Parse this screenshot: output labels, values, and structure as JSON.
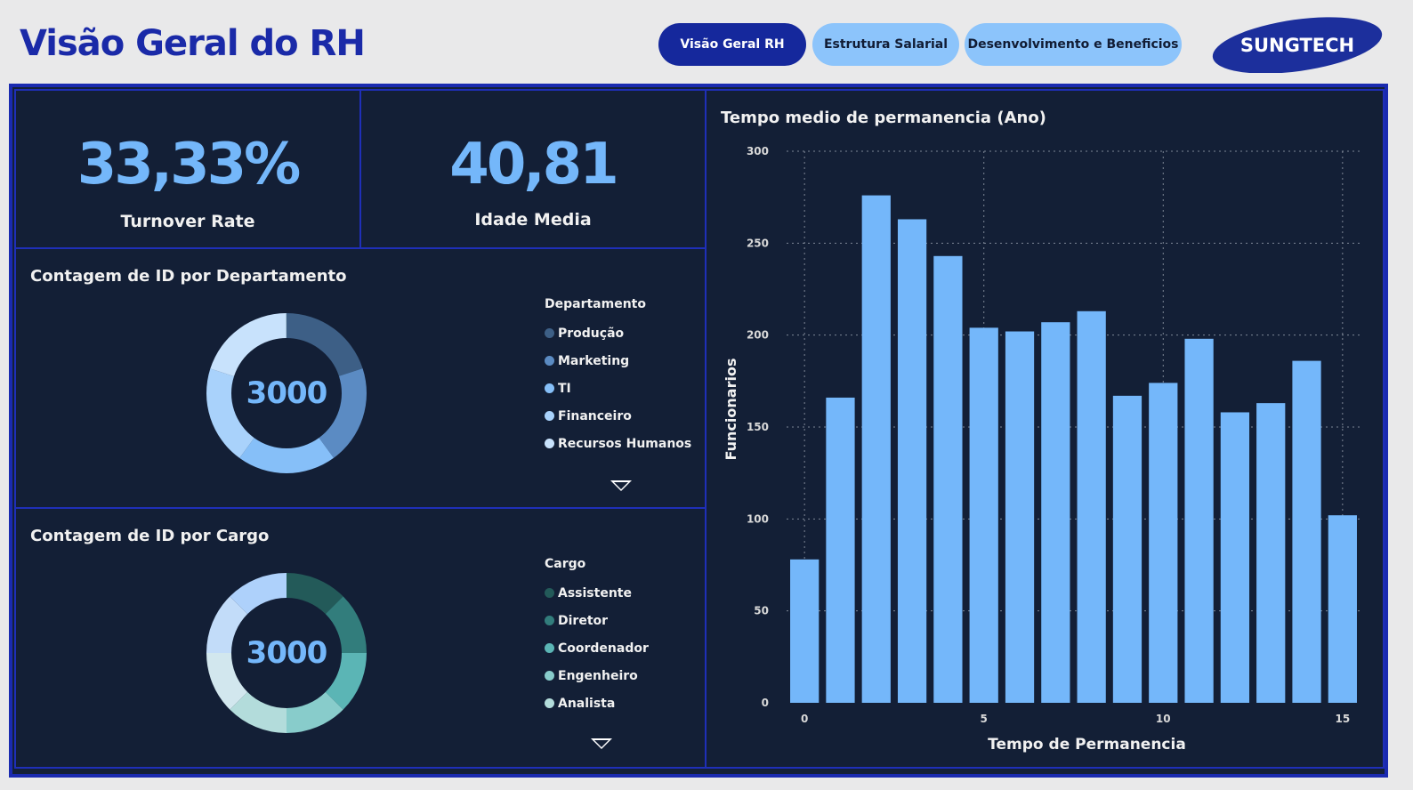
{
  "header": {
    "title": "Visão Geral do RH",
    "nav": [
      {
        "label": "Visão Geral RH",
        "active": true
      },
      {
        "label": "Estrutura Salarial",
        "active": false
      },
      {
        "label": "Desenvolvimento e Beneficios",
        "active": false
      }
    ],
    "logo_text": "SUNGTECH"
  },
  "kpis": {
    "turnover": {
      "value": "33,33%",
      "label": "Turnover Rate"
    },
    "age": {
      "value": "40,81",
      "label": "Idade Media"
    }
  },
  "colors": {
    "accent": "#74b7fa",
    "frame_border": "#1a2ab0",
    "background": "#131f36",
    "title_blue": "#1a2aa8"
  },
  "chart_data": [
    {
      "type": "pie",
      "variant": "donut",
      "title": "Contagem de ID por Departamento",
      "center_value": "3000",
      "legend_title": "Departamento",
      "categories": [
        "Produção",
        "Marketing",
        "TI",
        "Financeiro",
        "Recursos Humanos"
      ],
      "values": [
        600,
        600,
        600,
        600,
        600
      ],
      "colors": [
        "#3d5f86",
        "#5b8bc3",
        "#86bff8",
        "#a9d2fb",
        "#c8e2fc",
        "#d7e8ee",
        "#a8d6d6",
        "#8bc5cb"
      ],
      "extra_segments": [
        0.5,
        0.5,
        0.5
      ],
      "legend_more": true
    },
    {
      "type": "pie",
      "variant": "donut",
      "title": "Contagem de ID por Cargo",
      "center_value": "3000",
      "legend_title": "Cargo",
      "categories": [
        "Assistente",
        "Diretor",
        "Coordenador",
        "Engenheiro",
        "Analista"
      ],
      "values": [
        375,
        375,
        375,
        375,
        375
      ],
      "colors": [
        "#235a59",
        "#327d7c",
        "#5bb5b5",
        "#88cccb",
        "#b3dcdb",
        "#d2e7ee",
        "#c2dcf9",
        "#aed1fb"
      ],
      "extra_segments": [
        375,
        375,
        375
      ],
      "legend_more": true
    },
    {
      "type": "bar",
      "title": "Tempo medio de permanencia (Ano)",
      "xlabel": "Tempo de Permanencia",
      "ylabel": "Funcionarios",
      "x": [
        0,
        1,
        2,
        3,
        4,
        5,
        6,
        7,
        8,
        9,
        10,
        11,
        12,
        13,
        14,
        15
      ],
      "values": [
        78,
        166,
        276,
        263,
        243,
        204,
        202,
        207,
        213,
        167,
        174,
        198,
        158,
        163,
        186,
        102
      ],
      "ylim": [
        0,
        300
      ],
      "yticks": [
        0,
        50,
        100,
        150,
        200,
        250,
        300
      ],
      "xticks": [
        0,
        5,
        10,
        15
      ],
      "grid": true,
      "bar_color": "#74b7fa"
    }
  ]
}
